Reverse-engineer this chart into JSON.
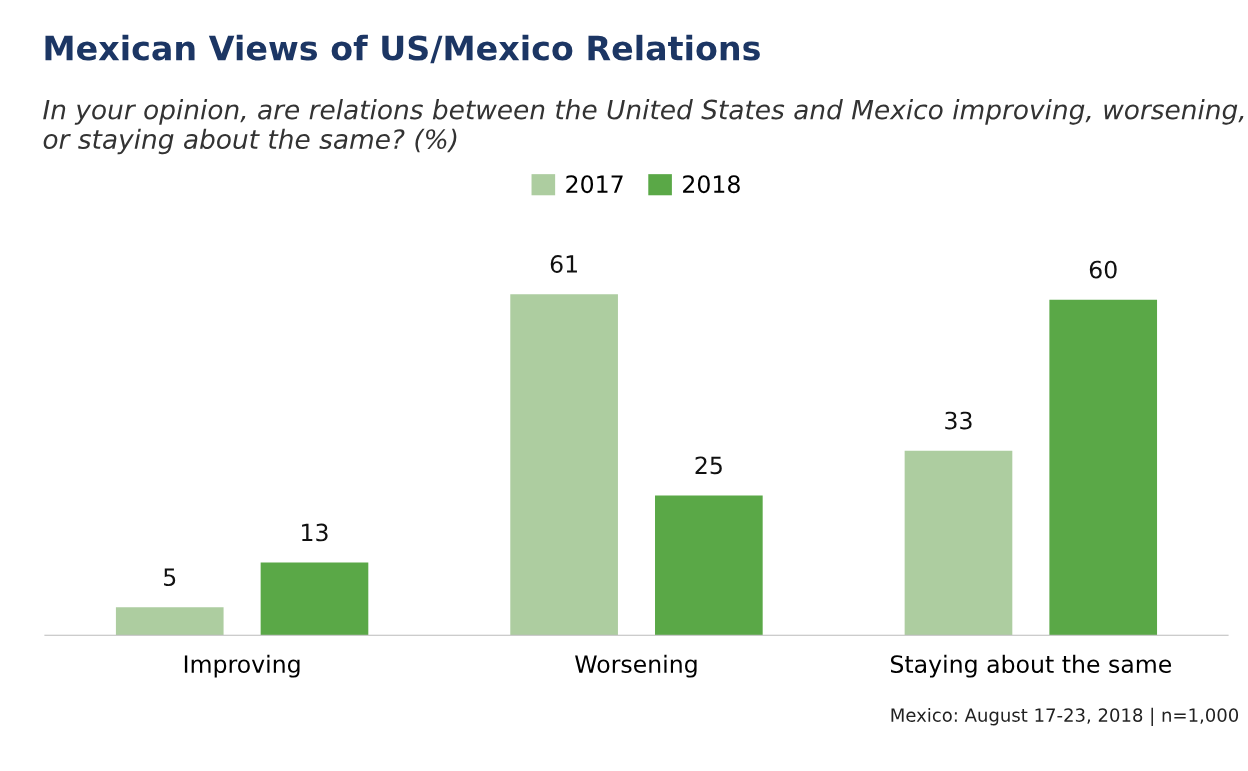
{
  "chart_data": {
    "type": "bar",
    "title": "Mexican Views of US/Mexico Relations",
    "subtitle": "In your opinion, are relations between the United States and Mexico improving, worsening, or staying about the same? (%)",
    "categories": [
      "Improving",
      "Worsening",
      "Staying about the same"
    ],
    "series": [
      {
        "name": "2017",
        "color": "#adcda0",
        "values": [
          5,
          61,
          33
        ]
      },
      {
        "name": "2018",
        "color": "#5aa847",
        "values": [
          13,
          25,
          60
        ]
      }
    ],
    "data_labels": true,
    "legend": "top",
    "grid": false,
    "annotations": [
      "Mexico: August 17-23, 2018 | n=1,000"
    ]
  }
}
